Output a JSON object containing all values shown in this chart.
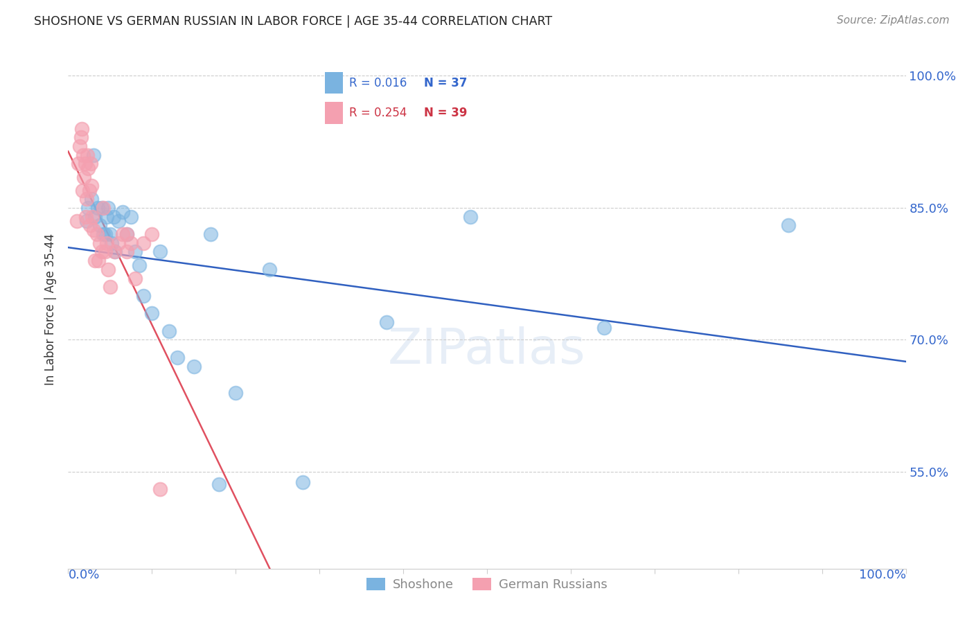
{
  "title": "SHOSHONE VS GERMAN RUSSIAN IN LABOR FORCE | AGE 35-44 CORRELATION CHART",
  "source": "Source: ZipAtlas.com",
  "ylabel": "In Labor Force | Age 35-44",
  "ytick_labels": [
    "100.0%",
    "85.0%",
    "70.0%",
    "55.0%"
  ],
  "ytick_values": [
    1.0,
    0.85,
    0.7,
    0.55
  ],
  "xlim": [
    0.0,
    1.0
  ],
  "ylim": [
    0.44,
    1.03
  ],
  "legend_R_shoshone": "R = 0.016",
  "legend_N_shoshone": "N = 37",
  "legend_R_german": "R = 0.254",
  "legend_N_german": "N = 39",
  "shoshone_color": "#7ab3e0",
  "german_color": "#f4a0b0",
  "shoshone_line_color": "#3060c0",
  "german_line_color": "#e05060",
  "background_color": "#ffffff",
  "shoshone_x": [
    0.022,
    0.024,
    0.028,
    0.03,
    0.032,
    0.035,
    0.038,
    0.04,
    0.042,
    0.044,
    0.046,
    0.048,
    0.05,
    0.052,
    0.054,
    0.056,
    0.06,
    0.065,
    0.07,
    0.075,
    0.08,
    0.085,
    0.09,
    0.1,
    0.11,
    0.12,
    0.13,
    0.15,
    0.17,
    0.2,
    0.24,
    0.48,
    0.64,
    0.86,
    0.38,
    0.28,
    0.18
  ],
  "shoshone_y": [
    0.835,
    0.85,
    0.86,
    0.91,
    0.84,
    0.85,
    0.83,
    0.85,
    0.82,
    0.82,
    0.84,
    0.85,
    0.82,
    0.81,
    0.84,
    0.8,
    0.835,
    0.845,
    0.82,
    0.84,
    0.8,
    0.785,
    0.75,
    0.73,
    0.8,
    0.71,
    0.68,
    0.67,
    0.82,
    0.64,
    0.78,
    0.84,
    0.714,
    0.83,
    0.72,
    0.538,
    0.536
  ],
  "german_x": [
    0.01,
    0.012,
    0.014,
    0.015,
    0.016,
    0.017,
    0.018,
    0.019,
    0.02,
    0.021,
    0.022,
    0.023,
    0.024,
    0.025,
    0.026,
    0.027,
    0.028,
    0.029,
    0.03,
    0.032,
    0.034,
    0.036,
    0.038,
    0.04,
    0.042,
    0.044,
    0.046,
    0.048,
    0.05,
    0.055,
    0.06,
    0.065,
    0.07,
    0.075,
    0.08,
    0.09,
    0.1,
    0.11,
    0.07
  ],
  "german_y": [
    0.835,
    0.9,
    0.92,
    0.93,
    0.94,
    0.87,
    0.91,
    0.885,
    0.9,
    0.84,
    0.86,
    0.91,
    0.895,
    0.87,
    0.83,
    0.9,
    0.875,
    0.84,
    0.825,
    0.79,
    0.82,
    0.79,
    0.81,
    0.8,
    0.85,
    0.8,
    0.81,
    0.78,
    0.76,
    0.8,
    0.81,
    0.82,
    0.8,
    0.81,
    0.77,
    0.81,
    0.82,
    0.53,
    0.82
  ]
}
